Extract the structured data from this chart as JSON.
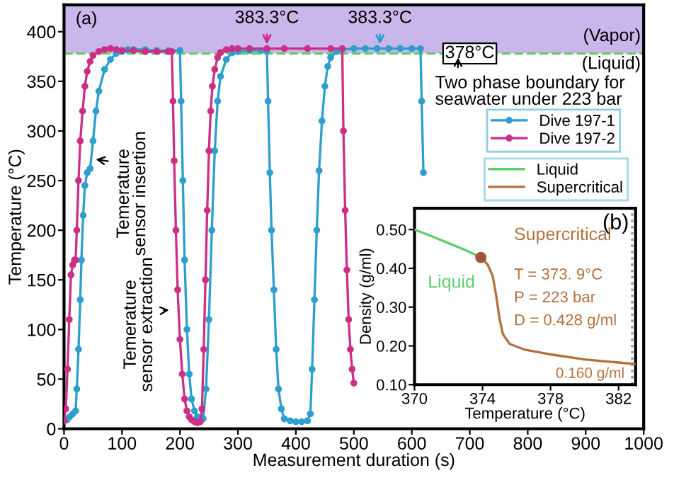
{
  "chart_data": [
    {
      "type": "line",
      "xlabel": "Measurement duration (s)",
      "ylabel": "Temperature (°C)",
      "xlim": [
        0,
        1000
      ],
      "xticks": [
        0,
        100,
        200,
        300,
        400,
        500,
        600,
        700,
        800,
        900,
        1000
      ],
      "ylim": [
        0,
        427
      ],
      "yticks": [
        0,
        50,
        100,
        150,
        200,
        250,
        300,
        350,
        400
      ],
      "legend": "right",
      "marker": "circle",
      "series": [
        {
          "name": "Dive 197-1",
          "color": "#2e9ecf",
          "x": [
            0,
            5,
            10,
            15,
            20,
            22,
            25,
            28,
            30,
            33,
            36,
            40,
            45,
            50,
            55,
            60,
            70,
            80,
            90,
            100,
            110,
            120,
            140,
            160,
            180,
            200,
            202,
            205,
            208,
            212,
            216,
            220,
            225,
            230,
            235,
            240,
            245,
            250,
            255,
            260,
            265,
            270,
            280,
            290,
            300,
            320,
            340,
            350,
            352,
            355,
            358,
            362,
            366,
            370,
            375,
            380,
            390,
            400,
            410,
            420,
            425,
            428,
            432,
            436,
            440,
            445,
            450,
            455,
            460,
            470,
            480,
            500,
            520,
            540,
            560,
            580,
            600,
            615,
            617,
            620
          ],
          "values": [
            8,
            9,
            12,
            15,
            18,
            40,
            80,
            130,
            170,
            215,
            245,
            258,
            262,
            290,
            320,
            340,
            362,
            372,
            378,
            380,
            382,
            382,
            382,
            381,
            381,
            381,
            330,
            250,
            170,
            100,
            55,
            30,
            18,
            12,
            10,
            10,
            40,
            110,
            200,
            280,
            330,
            355,
            372,
            379,
            380,
            381,
            381,
            381,
            330,
            258,
            200,
            140,
            80,
            40,
            20,
            10,
            8,
            7,
            7,
            8,
            15,
            60,
            130,
            200,
            260,
            310,
            345,
            365,
            374,
            380,
            382,
            383,
            383,
            383,
            383,
            383,
            383,
            383,
            330,
            258
          ]
        },
        {
          "name": "Dive 197-2",
          "color": "#cc2f86",
          "x": [
            0,
            3,
            6,
            9,
            12,
            15,
            18,
            20,
            22,
            25,
            28,
            32,
            36,
            40,
            45,
            50,
            60,
            70,
            80,
            90,
            100,
            120,
            140,
            160,
            180,
            186,
            188,
            190,
            193,
            196,
            200,
            204,
            208,
            212,
            216,
            220,
            225,
            230,
            235,
            238,
            241,
            244,
            247,
            250,
            253,
            256,
            260,
            265,
            270,
            280,
            290,
            300,
            320,
            350,
            380,
            420,
            460,
            480,
            482,
            485,
            488,
            491,
            494,
            497,
            500
          ],
          "values": [
            8,
            20,
            60,
            110,
            155,
            165,
            170,
            170,
            200,
            250,
            290,
            320,
            345,
            360,
            370,
            376,
            380,
            382,
            383,
            382,
            381,
            381,
            380,
            380,
            380,
            380,
            330,
            270,
            200,
            140,
            90,
            55,
            30,
            18,
            12,
            9,
            7,
            6,
            7,
            20,
            80,
            150,
            220,
            280,
            320,
            345,
            362,
            374,
            379,
            382,
            383,
            383,
            383,
            383,
            383,
            383,
            383,
            383,
            300,
            220,
            160,
            110,
            80,
            60,
            46
          ]
        }
      ],
      "ref_lines": [
        {
          "axis": "y",
          "value": 378,
          "label": "378°C",
          "color": "#66cc66",
          "line_style": "dashed"
        }
      ],
      "bands": [
        {
          "axis": "y",
          "from": 378,
          "to": 427,
          "label": "(Vapor)",
          "color": "#c9b6ea"
        }
      ],
      "annotations": [
        "(a)",
        {
          "text": "383.3°C",
          "x": 350,
          "y": 383.3
        },
        {
          "text": "383.3°C",
          "x": 545,
          "y": 383.3
        },
        "(Liquid)",
        {
          "text": "Two phase boundary for\nseawater under 223 bar",
          "x": 680,
          "y": 378
        },
        {
          "text": "Temerature\nsensor insertion",
          "x": 48,
          "y": 272
        },
        {
          "text": "Temerature\nsensor extraction",
          "x": 188,
          "y": 120
        }
      ]
    },
    {
      "type": "line",
      "xlabel": "Temperature (°C)",
      "ylabel": "Density (g/ml)",
      "xlim": [
        370,
        383
      ],
      "xticks": [
        370,
        374,
        378,
        382
      ],
      "ylim": [
        0.1,
        0.555
      ],
      "legend": "top right",
      "yticks": [
        {
          "value": 0.1,
          "label": "0.10"
        },
        {
          "value": 0.2,
          "label": "0.20"
        },
        {
          "value": 0.3,
          "label": "0.30"
        },
        {
          "value": 0.4,
          "label": "0.40"
        },
        {
          "value": 0.5,
          "label": "0.50"
        }
      ],
      "series": [
        {
          "name": "Liquid",
          "color": "#5ccf6a",
          "x": [
            370,
            371,
            372,
            373,
            373.9
          ],
          "values": [
            0.5,
            0.483,
            0.465,
            0.447,
            0.428
          ]
        },
        {
          "name": "Supercritical",
          "color": "#b5703f",
          "x": [
            373.9,
            374.3,
            374.6,
            374.8,
            375.0,
            375.2,
            375.6,
            376.5,
            378,
            380,
            382,
            383
          ],
          "values": [
            0.428,
            0.41,
            0.38,
            0.33,
            0.27,
            0.23,
            0.205,
            0.19,
            0.178,
            0.165,
            0.157,
            0.153
          ]
        },
        {
          "type": "scatter",
          "color": "#a0553a",
          "x": [
            373.9
          ],
          "values": [
            0.428
          ]
        }
      ],
      "ref_lines": [
        {
          "axis": "x",
          "value": 382.8,
          "color": "#999999",
          "line_style": "dotted"
        }
      ],
      "annotations": [
        "(b)",
        "T = 373. 9°C",
        "P = 223 bar",
        "D = 0.428 g/ml",
        "0.160 g/ml"
      ]
    }
  ]
}
